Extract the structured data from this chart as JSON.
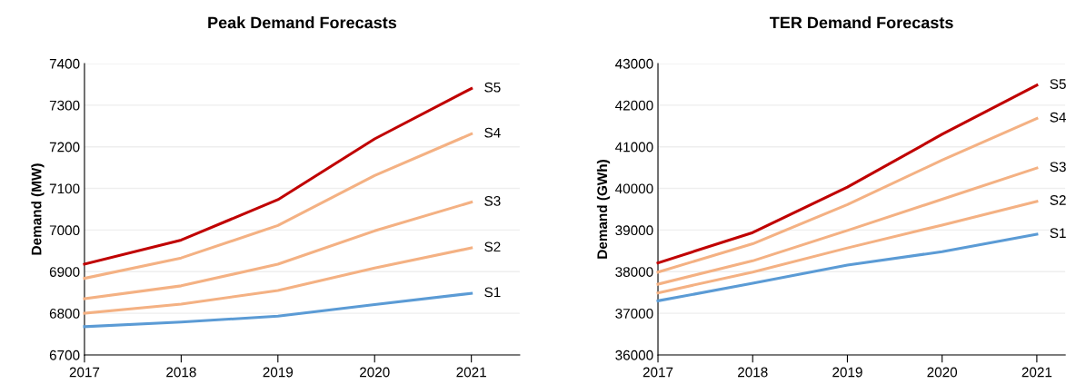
{
  "chart_data": [
    {
      "type": "line",
      "title": "Peak Demand Forecasts",
      "ylabel": "Demand (MW)",
      "x": [
        2017,
        2018,
        2019,
        2020,
        2021
      ],
      "xlim": [
        2017,
        2021.5
      ],
      "xticks": [
        2017,
        2018,
        2019,
        2020,
        2021
      ],
      "ylim": [
        6700,
        7400
      ],
      "yticks": [
        6700,
        6800,
        6900,
        7000,
        7100,
        7200,
        7300,
        7400
      ],
      "grid": "y",
      "legend": false,
      "marker": "none",
      "line_style": "solid",
      "series": [
        {
          "name": "S1",
          "color": "#5b9bd5",
          "values": [
            6768,
            6779,
            6793,
            6821,
            6848
          ]
        },
        {
          "name": "S2",
          "color": "#f4b183",
          "values": [
            6800,
            6822,
            6855,
            6909,
            6957
          ]
        },
        {
          "name": "S3",
          "color": "#f4b183",
          "values": [
            6835,
            6866,
            6918,
            6998,
            7067
          ]
        },
        {
          "name": "S4",
          "color": "#f4b183",
          "values": [
            6884,
            6933,
            7011,
            7131,
            7231
          ]
        },
        {
          "name": "S5",
          "color": "#c00000",
          "values": [
            6918,
            6976,
            7073,
            7219,
            7340
          ]
        }
      ]
    },
    {
      "type": "line",
      "title": "TER Demand Forecasts",
      "ylabel": "Demand (GWh)",
      "x": [
        2017,
        2018,
        2019,
        2020,
        2021
      ],
      "xlim": [
        2017,
        2021.3
      ],
      "xticks": [
        2017,
        2018,
        2019,
        2020,
        2021
      ],
      "ylim": [
        36000,
        43000
      ],
      "yticks": [
        36000,
        37000,
        38000,
        39000,
        40000,
        41000,
        42000,
        43000
      ],
      "grid": "y",
      "legend": false,
      "marker": "none",
      "line_style": "solid",
      "series": [
        {
          "name": "S1",
          "color": "#5b9bd5",
          "values": [
            37300,
            37720,
            38160,
            38480,
            38900
          ]
        },
        {
          "name": "S2",
          "color": "#f4b183",
          "values": [
            37490,
            37990,
            38570,
            39120,
            39690
          ]
        },
        {
          "name": "S3",
          "color": "#f4b183",
          "values": [
            37700,
            38260,
            38990,
            39740,
            40490
          ]
        },
        {
          "name": "S4",
          "color": "#f4b183",
          "values": [
            37990,
            38670,
            39610,
            40680,
            41680
          ]
        },
        {
          "name": "S5",
          "color": "#c00000",
          "values": [
            38210,
            38940,
            40030,
            41300,
            42480
          ]
        }
      ]
    }
  ]
}
